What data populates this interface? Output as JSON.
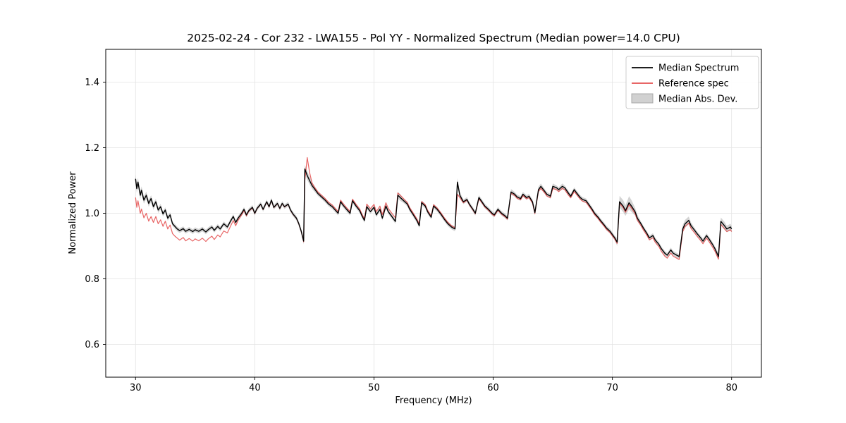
{
  "chart_data": {
    "type": "line",
    "title": "2025-02-24 - Cor 232 - LWA155 - Pol YY - Normalized Spectrum (Median power=14.0 CPU)",
    "xlabel": "Frequency (MHz)",
    "ylabel": "Normalized Power",
    "xlim": [
      27.5,
      82.5
    ],
    "ylim": [
      0.5,
      1.5
    ],
    "xticks": [
      30,
      40,
      50,
      60,
      70,
      80
    ],
    "yticks": [
      0.6,
      0.8,
      1.0,
      1.2,
      1.4
    ],
    "grid": true,
    "legend": {
      "position": "upper right",
      "entries": [
        {
          "label": "Median Spectrum",
          "color": "#000000",
          "type": "line"
        },
        {
          "label": "Reference spec",
          "color": "#e03131",
          "type": "line"
        },
        {
          "label": "Median Abs. Dev.",
          "color": "#999999",
          "type": "patch"
        }
      ]
    },
    "series_format": [
      "frequency_mhz",
      "median_spectrum",
      "reference_spec",
      "median_abs_dev_optional"
    ],
    "default_mad": 0.007,
    "points": [
      [
        30.0,
        1.105,
        1.048,
        0.013
      ],
      [
        30.1,
        1.075,
        1.018,
        0.013
      ],
      [
        30.2,
        1.095,
        1.038,
        0.013
      ],
      [
        30.4,
        1.055,
        1.0,
        0.012
      ],
      [
        30.5,
        1.07,
        1.013,
        0.012
      ],
      [
        30.7,
        1.04,
        0.986,
        0.011
      ],
      [
        30.9,
        1.055,
        1.0,
        0.011
      ],
      [
        31.1,
        1.03,
        0.976,
        0.01
      ],
      [
        31.3,
        1.045,
        0.99,
        0.01
      ],
      [
        31.5,
        1.02,
        0.972,
        0.01
      ],
      [
        31.7,
        1.035,
        0.99,
        0.009
      ],
      [
        31.9,
        1.01,
        0.968,
        0.009
      ],
      [
        32.1,
        1.02,
        0.98,
        0.009
      ],
      [
        32.3,
        0.998,
        0.96,
        0.008
      ],
      [
        32.5,
        1.01,
        0.976,
        0.008
      ],
      [
        32.7,
        0.985,
        0.952,
        0.008
      ],
      [
        32.9,
        0.995,
        0.964,
        0.008
      ],
      [
        33.1,
        0.968,
        0.938
      ],
      [
        33.3,
        0.96,
        0.93
      ],
      [
        33.5,
        0.952,
        0.924
      ],
      [
        33.7,
        0.947,
        0.918
      ],
      [
        34.0,
        0.953,
        0.926
      ],
      [
        34.2,
        0.945,
        0.916
      ],
      [
        34.5,
        0.951,
        0.923
      ],
      [
        34.8,
        0.944,
        0.915
      ],
      [
        35.0,
        0.95,
        0.922
      ],
      [
        35.3,
        0.945,
        0.916
      ],
      [
        35.6,
        0.952,
        0.924
      ],
      [
        35.9,
        0.943,
        0.914
      ],
      [
        36.1,
        0.95,
        0.922
      ],
      [
        36.4,
        0.958,
        0.93
      ],
      [
        36.6,
        0.948,
        0.92
      ],
      [
        36.9,
        0.96,
        0.934
      ],
      [
        37.1,
        0.952,
        0.928
      ],
      [
        37.4,
        0.968,
        0.946
      ],
      [
        37.7,
        0.958,
        0.94
      ],
      [
        38.0,
        0.978,
        0.963
      ],
      [
        38.2,
        0.99,
        0.978
      ],
      [
        38.4,
        0.972,
        0.962
      ],
      [
        38.6,
        0.985,
        0.978
      ],
      [
        38.9,
        1.0,
        0.995
      ],
      [
        39.1,
        1.012,
        1.008
      ],
      [
        39.3,
        0.995,
        0.992
      ],
      [
        39.5,
        1.008,
        1.006
      ],
      [
        39.8,
        1.018,
        1.016
      ],
      [
        40.0,
        1.0,
        0.999
      ],
      [
        40.2,
        1.015,
        1.014
      ],
      [
        40.5,
        1.028,
        1.027
      ],
      [
        40.7,
        1.012,
        1.011
      ],
      [
        41.0,
        1.035,
        1.034
      ],
      [
        41.2,
        1.02,
        1.019
      ],
      [
        41.4,
        1.04,
        1.039
      ],
      [
        41.6,
        1.018,
        1.017
      ],
      [
        41.9,
        1.03,
        1.029
      ],
      [
        42.1,
        1.015,
        1.014
      ],
      [
        42.3,
        1.03,
        1.029
      ],
      [
        42.5,
        1.02,
        1.019
      ],
      [
        42.8,
        1.028,
        1.027
      ],
      [
        43.0,
        1.01,
        1.009
      ],
      [
        43.2,
        0.998,
        0.997
      ],
      [
        43.5,
        0.985,
        0.984
      ],
      [
        43.7,
        0.968,
        0.967
      ],
      [
        43.9,
        0.945,
        0.944
      ],
      [
        44.1,
        0.915,
        0.913,
        0.01
      ],
      [
        44.2,
        1.135,
        1.1,
        0.013
      ],
      [
        44.4,
        1.115,
        1.17,
        0.013
      ],
      [
        44.6,
        1.1,
        1.125,
        0.012
      ],
      [
        44.8,
        1.085,
        1.093,
        0.01
      ],
      [
        45.0,
        1.075,
        1.08,
        0.009
      ],
      [
        45.3,
        1.06,
        1.065
      ],
      [
        45.6,
        1.05,
        1.055
      ],
      [
        45.9,
        1.04,
        1.045
      ],
      [
        46.2,
        1.028,
        1.033
      ],
      [
        46.5,
        1.02,
        1.025
      ],
      [
        46.8,
        1.008,
        1.013
      ],
      [
        47.0,
        1.0,
        1.005
      ],
      [
        47.2,
        1.035,
        1.04
      ],
      [
        47.4,
        1.025,
        1.03
      ],
      [
        47.7,
        1.012,
        1.017
      ],
      [
        48.0,
        1.0,
        1.005
      ],
      [
        48.2,
        1.038,
        1.043
      ],
      [
        48.5,
        1.022,
        1.027
      ],
      [
        48.8,
        1.008,
        1.013
      ],
      [
        49.0,
        0.992,
        0.997
      ],
      [
        49.2,
        0.978,
        0.984
      ],
      [
        49.4,
        1.02,
        1.028
      ],
      [
        49.7,
        1.005,
        1.014
      ],
      [
        50.0,
        1.018,
        1.027
      ],
      [
        50.2,
        0.995,
        1.005
      ],
      [
        50.5,
        1.012,
        1.022
      ],
      [
        50.7,
        0.985,
        0.996
      ],
      [
        51.0,
        1.022,
        1.032
      ],
      [
        51.2,
        1.005,
        1.015
      ],
      [
        51.5,
        0.99,
        1.0
      ],
      [
        51.8,
        0.975,
        0.986
      ],
      [
        52.0,
        1.055,
        1.062,
        0.01
      ],
      [
        52.2,
        1.048,
        1.055,
        0.01
      ],
      [
        52.5,
        1.038,
        1.044
      ],
      [
        52.8,
        1.028,
        1.033
      ],
      [
        53.0,
        1.012,
        1.017
      ],
      [
        53.3,
        0.995,
        1.0
      ],
      [
        53.6,
        0.978,
        0.983
      ],
      [
        53.8,
        0.962,
        0.967
      ],
      [
        54.0,
        1.032,
        1.036
      ],
      [
        54.3,
        1.022,
        1.026
      ],
      [
        54.5,
        1.005,
        1.009
      ],
      [
        54.8,
        0.988,
        0.992
      ],
      [
        55.0,
        1.022,
        1.026
      ],
      [
        55.3,
        1.012,
        1.016
      ],
      [
        55.6,
        0.998,
        1.002
      ],
      [
        55.9,
        0.982,
        0.986
      ],
      [
        56.2,
        0.968,
        0.972
      ],
      [
        56.5,
        0.958,
        0.962
      ],
      [
        56.8,
        0.952,
        0.956
      ],
      [
        57.0,
        1.095,
        1.058,
        0.012
      ],
      [
        57.2,
        1.055,
        1.048,
        0.01
      ],
      [
        57.5,
        1.035,
        1.032
      ],
      [
        57.8,
        1.042,
        1.04
      ],
      [
        58.0,
        1.028,
        1.026
      ],
      [
        58.3,
        1.012,
        1.01
      ],
      [
        58.5,
        1.0,
        0.998
      ],
      [
        58.8,
        1.048,
        1.044
      ],
      [
        59.0,
        1.038,
        1.035
      ],
      [
        59.3,
        1.022,
        1.019
      ],
      [
        59.6,
        1.012,
        1.009
      ],
      [
        59.9,
        1.0,
        0.997
      ],
      [
        60.1,
        0.995,
        0.992
      ],
      [
        60.4,
        1.012,
        1.009
      ],
      [
        60.7,
        1.0,
        0.997
      ],
      [
        61.0,
        0.992,
        0.989
      ],
      [
        61.2,
        0.985,
        0.982
      ],
      [
        61.5,
        1.065,
        1.061,
        0.009
      ],
      [
        61.8,
        1.058,
        1.054
      ],
      [
        62.0,
        1.05,
        1.046
      ],
      [
        62.3,
        1.045,
        1.041
      ],
      [
        62.5,
        1.058,
        1.054
      ],
      [
        62.8,
        1.048,
        1.044
      ],
      [
        63.0,
        1.052,
        1.048
      ],
      [
        63.3,
        1.035,
        1.031
      ],
      [
        63.5,
        1.002,
        0.999
      ],
      [
        63.8,
        1.072,
        1.067,
        0.009
      ],
      [
        64.0,
        1.082,
        1.076,
        0.009
      ],
      [
        64.3,
        1.068,
        1.063
      ],
      [
        64.5,
        1.058,
        1.053
      ],
      [
        64.8,
        1.052,
        1.047
      ],
      [
        65.0,
        1.082,
        1.076,
        0.009
      ],
      [
        65.3,
        1.078,
        1.072
      ],
      [
        65.5,
        1.072,
        1.066
      ],
      [
        65.8,
        1.082,
        1.076,
        0.009
      ],
      [
        66.0,
        1.078,
        1.072
      ],
      [
        66.3,
        1.062,
        1.056
      ],
      [
        66.5,
        1.052,
        1.047
      ],
      [
        66.8,
        1.072,
        1.066
      ],
      [
        67.0,
        1.062,
        1.057
      ],
      [
        67.3,
        1.048,
        1.043
      ],
      [
        67.5,
        1.042,
        1.037
      ],
      [
        67.8,
        1.038,
        1.033
      ],
      [
        68.0,
        1.028,
        1.023
      ],
      [
        68.3,
        1.012,
        1.008
      ],
      [
        68.5,
        1.0,
        0.996
      ],
      [
        68.8,
        0.988,
        0.984
      ],
      [
        69.0,
        0.978,
        0.974
      ],
      [
        69.3,
        0.965,
        0.961
      ],
      [
        69.5,
        0.955,
        0.951
      ],
      [
        69.8,
        0.945,
        0.941
      ],
      [
        70.0,
        0.935,
        0.931
      ],
      [
        70.2,
        0.925,
        0.921
      ],
      [
        70.4,
        0.912,
        0.908,
        0.012
      ],
      [
        70.6,
        1.035,
        1.03,
        0.018
      ],
      [
        70.9,
        1.022,
        1.017,
        0.018
      ],
      [
        71.1,
        1.008,
        1.003,
        0.016
      ],
      [
        71.4,
        1.032,
        1.026,
        0.02
      ],
      [
        71.6,
        1.022,
        1.016,
        0.018
      ],
      [
        71.9,
        1.005,
        0.999,
        0.012
      ],
      [
        72.1,
        0.985,
        0.979,
        0.01
      ],
      [
        72.4,
        0.968,
        0.962
      ],
      [
        72.6,
        0.955,
        0.949
      ],
      [
        72.9,
        0.938,
        0.932
      ],
      [
        73.1,
        0.925,
        0.919
      ],
      [
        73.4,
        0.932,
        0.925
      ],
      [
        73.6,
        0.918,
        0.911
      ],
      [
        73.9,
        0.905,
        0.898
      ],
      [
        74.1,
        0.892,
        0.884
      ],
      [
        74.4,
        0.878,
        0.869
      ],
      [
        74.6,
        0.872,
        0.863
      ],
      [
        74.9,
        0.888,
        0.879
      ],
      [
        75.1,
        0.878,
        0.869
      ],
      [
        75.4,
        0.872,
        0.863
      ],
      [
        75.6,
        0.868,
        0.859
      ],
      [
        75.9,
        0.952,
        0.944,
        0.012
      ],
      [
        76.1,
        0.968,
        0.96,
        0.012
      ],
      [
        76.4,
        0.978,
        0.97,
        0.012
      ],
      [
        76.6,
        0.962,
        0.954,
        0.01
      ],
      [
        76.9,
        0.948,
        0.94
      ],
      [
        77.1,
        0.938,
        0.93
      ],
      [
        77.4,
        0.925,
        0.917
      ],
      [
        77.6,
        0.915,
        0.907
      ],
      [
        77.9,
        0.932,
        0.924
      ],
      [
        78.1,
        0.922,
        0.914
      ],
      [
        78.4,
        0.905,
        0.897
      ],
      [
        78.6,
        0.892,
        0.884
      ],
      [
        78.9,
        0.868,
        0.86,
        0.01
      ],
      [
        79.1,
        0.975,
        0.966,
        0.012
      ],
      [
        79.4,
        0.962,
        0.953,
        0.012
      ],
      [
        79.6,
        0.952,
        0.944,
        0.01
      ],
      [
        79.9,
        0.958,
        0.95,
        0.01
      ],
      [
        80.0,
        0.952,
        0.944,
        0.01
      ]
    ]
  }
}
